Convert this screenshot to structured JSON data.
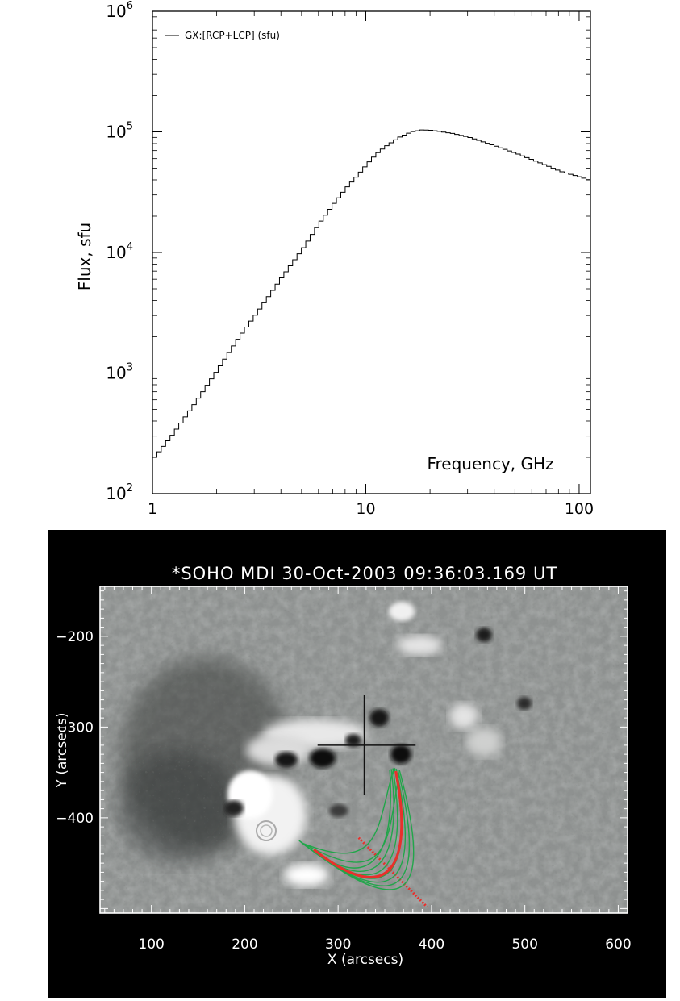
{
  "chart_data": [
    {
      "type": "line",
      "title": "",
      "xlabel": "Frequency, GHz",
      "ylabel": "Flux, sfu",
      "xscale": "log",
      "yscale": "log",
      "xlim": [
        1,
        113
      ],
      "ylim": [
        100,
        1000000
      ],
      "grid": false,
      "legend_position": "top-left",
      "x_ticks": [
        {
          "value": 1,
          "label": "1"
        },
        {
          "value": 10,
          "label": "10"
        },
        {
          "value": 100,
          "label": "100"
        }
      ],
      "y_ticks": [
        {
          "value": 100,
          "base": "10",
          "exp": "2"
        },
        {
          "value": 1000,
          "base": "10",
          "exp": "3"
        },
        {
          "value": 10000,
          "base": "10",
          "exp": "4"
        },
        {
          "value": 100000,
          "base": "10",
          "exp": "5"
        },
        {
          "value": 1000000,
          "base": "10",
          "exp": "6"
        }
      ],
      "series": [
        {
          "name": "GX:[RCP+LCP] (sfu)",
          "color": "#000000",
          "step": true,
          "x": [
            1.0,
            1.2,
            1.5,
            2.0,
            2.5,
            3.0,
            4.0,
            5.0,
            6.0,
            7.0,
            8.0,
            9.0,
            10.0,
            11.0,
            12.0,
            14.0,
            16.0,
            18.0,
            20.0,
            25.0,
            30.0,
            40.0,
            50.0,
            60.0,
            70.0,
            80.0,
            100.0,
            113.0
          ],
          "y": [
            200,
            300,
            520,
            1100,
            2000,
            3100,
            6400,
            11000,
            18000,
            26000,
            35000,
            44000,
            55000,
            66000,
            75000,
            90000,
            100000,
            104000,
            103000,
            97000,
            90000,
            76000,
            66000,
            58000,
            52000,
            47000,
            42000,
            39000
          ]
        }
      ]
    },
    {
      "type": "heatmap",
      "title": "*SOHO MDI 30-Oct-2003 09:36:03.169 UT",
      "xlabel": "X (arcsecs)",
      "ylabel": "Y (arcsecs)",
      "xlim": [
        45,
        610
      ],
      "ylim": [
        -505,
        -145
      ],
      "grid": false,
      "x_ticks": [
        100,
        200,
        300,
        400,
        500,
        600
      ],
      "y_ticks": [
        -200,
        -300,
        -400
      ],
      "colormap": "grayscale",
      "crosshair_center": [
        328,
        -320
      ],
      "loop_color": "#21a64a",
      "highlight_color": "#e8302c",
      "loop_apex_xy": [
        360,
        -345
      ],
      "loop_footpoint_xy": [
        262,
        -428
      ]
    }
  ]
}
